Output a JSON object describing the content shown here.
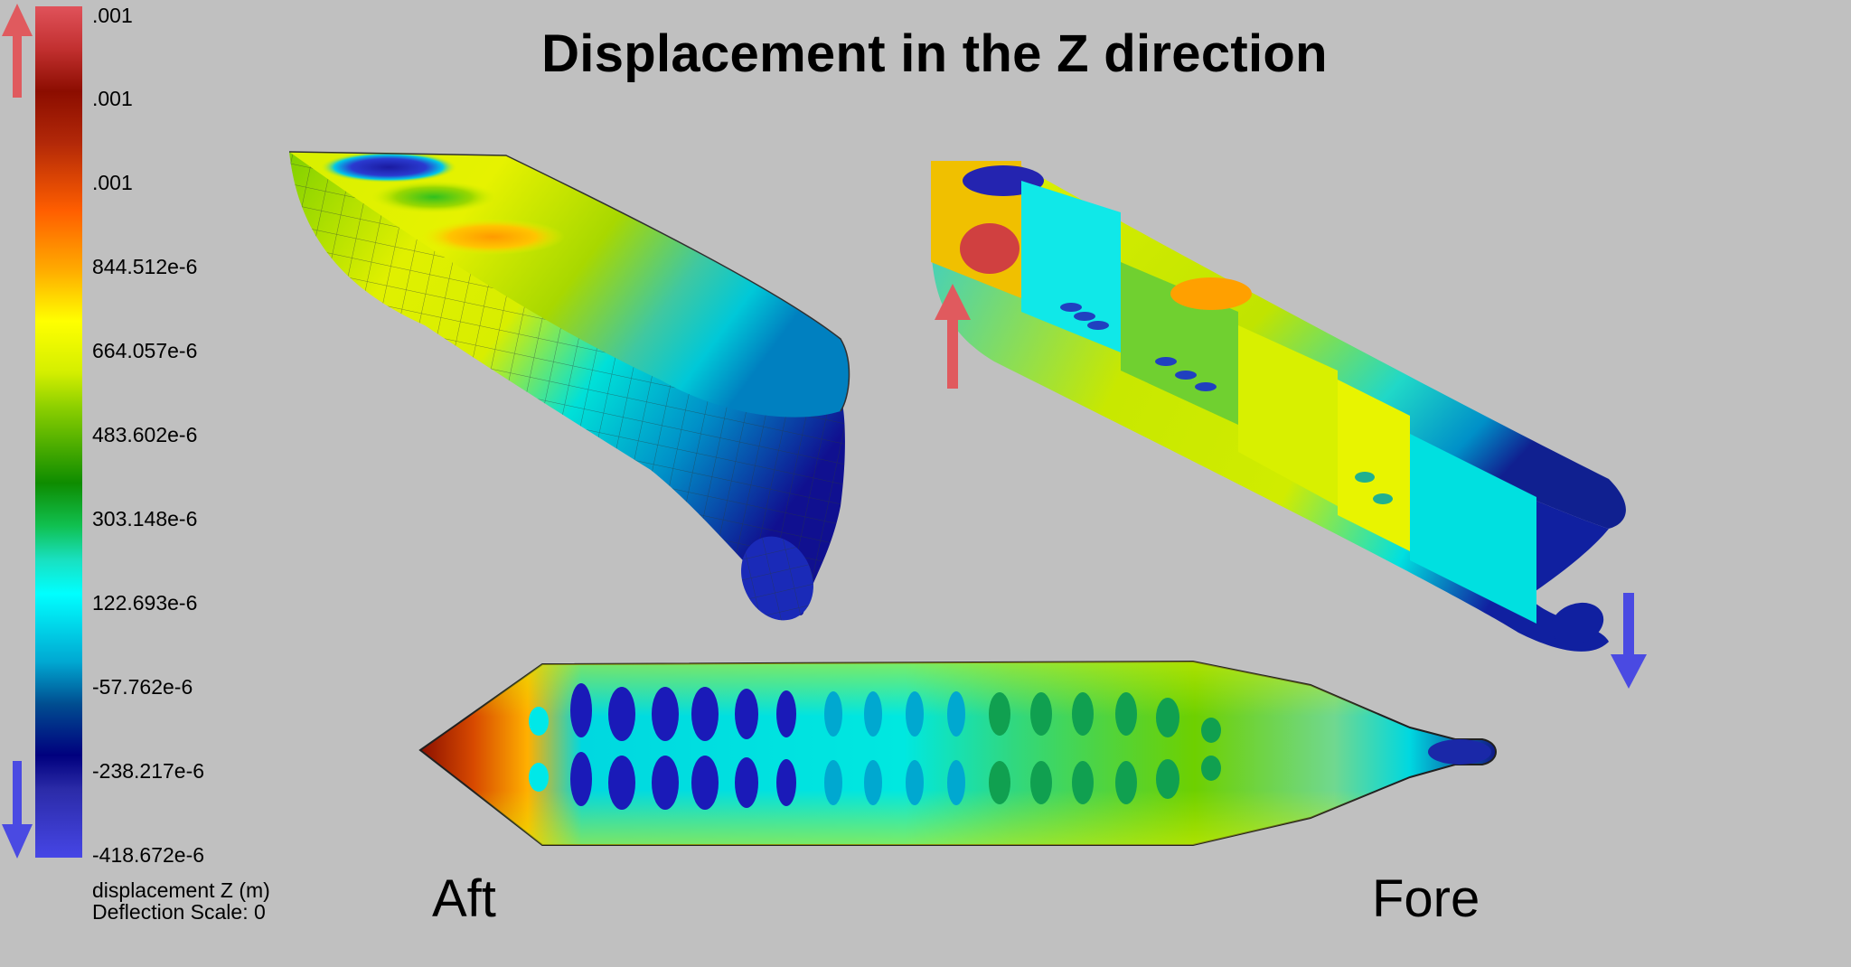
{
  "title": "Displacement in the Z direction",
  "legend": {
    "ticks": [
      ".001",
      ".001",
      ".001",
      "844.512e-6",
      "664.057e-6",
      "483.602e-6",
      "303.148e-6",
      "122.693e-6",
      "-57.762e-6",
      "-238.217e-6",
      "-418.672e-6"
    ],
    "caption_line1": "displacement Z (m)",
    "caption_line2": "Deflection Scale: 0",
    "up_arrow_color": "#e05a5e",
    "down_arrow_color": "#4a4ae2"
  },
  "labels": {
    "aft": "Aft",
    "fore": "Fore"
  }
}
